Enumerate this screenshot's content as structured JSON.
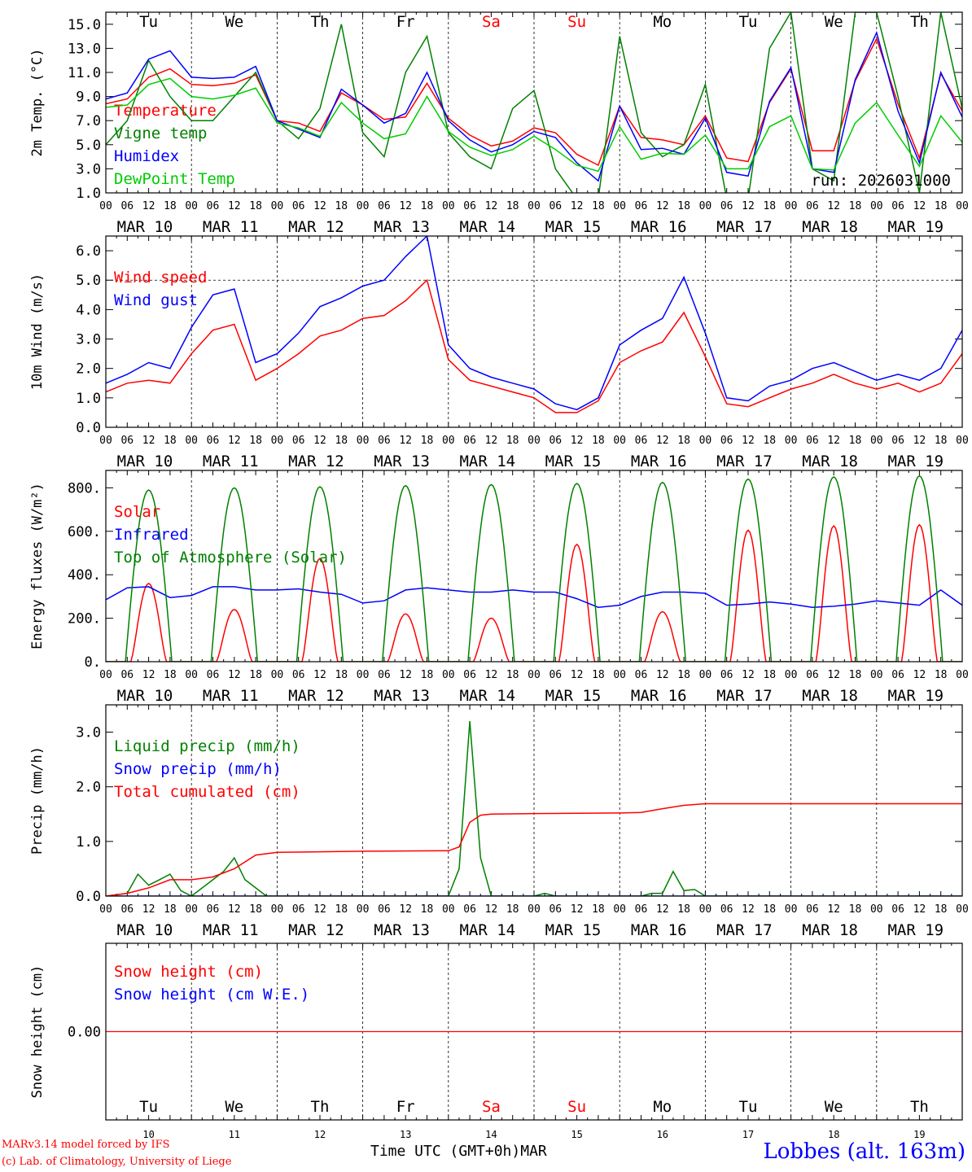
{
  "run_label": "run: 2026031000",
  "days_top": [
    "Tu",
    "We",
    "Th",
    "Fr",
    "Sa",
    "Su",
    "Mo",
    "Tu",
    "We",
    "Th"
  ],
  "day_colors": [
    "#000000",
    "#000000",
    "#000000",
    "#000000",
    "#ff0000",
    "#ff0000",
    "#000000",
    "#000000",
    "#000000",
    "#000000"
  ],
  "date_labels": [
    "MAR 10",
    "MAR 11",
    "MAR 12",
    "MAR 13",
    "MAR 14",
    "MAR 15",
    "MAR 16",
    "MAR 17",
    "MAR 18",
    "MAR 19"
  ],
  "hour_ticks": [
    "00",
    "06",
    "12",
    "18"
  ],
  "day_numbers": [
    "10",
    "11",
    "12",
    "13",
    "14",
    "15",
    "16",
    "17",
    "18",
    "19"
  ],
  "footer": {
    "model": "MARv3.14 model forced by IFS",
    "copyright": "(c) Lab. of Climatology, University of Liege",
    "time_label": "Time UTC (GMT+0h)",
    "month": "MAR",
    "station": "Lobbes (alt. 163m)"
  },
  "chart_data": [
    {
      "type": "line",
      "ylabel": "2m Temp. (°C)",
      "ylim": [
        1.0,
        16.0
      ],
      "yticks": [
        "1.0",
        "3.0",
        "5.0",
        "7.0",
        "9.0",
        "11.0",
        "13.0",
        "15.0"
      ],
      "ytick_values": [
        1,
        3,
        5,
        7,
        9,
        11,
        13,
        15
      ],
      "x_hours": [
        0,
        6,
        12,
        18,
        24,
        30,
        36,
        42,
        48,
        54,
        60,
        66,
        72,
        78,
        84,
        90,
        96,
        102,
        108,
        114,
        120,
        126,
        132,
        138,
        144,
        150,
        156,
        162,
        168,
        174,
        180,
        186,
        192,
        198,
        204,
        210,
        216,
        222,
        228,
        234,
        240
      ],
      "series": [
        {
          "name": "Temperature",
          "color": "#ff0000",
          "values": [
            8.4,
            8.8,
            10.6,
            11.3,
            10.0,
            9.9,
            10.1,
            10.8,
            7.0,
            6.8,
            6.1,
            9.3,
            8.3,
            7.1,
            7.3,
            10.1,
            7.2,
            5.8,
            4.9,
            5.3,
            6.4,
            6.0,
            4.2,
            3.3,
            8.2,
            5.6,
            5.4,
            5.0,
            7.4,
            3.9,
            3.6,
            8.5,
            11.3,
            4.5,
            4.5,
            10.3,
            13.8,
            8.4,
            3.9,
            10.9,
            7.8
          ]
        },
        {
          "name": "Vigne temp",
          "color": "#008000",
          "values": [
            5.0,
            7.0,
            12.0,
            9.0,
            7.0,
            7.0,
            9.0,
            11.0,
            7.0,
            5.5,
            8.0,
            15.0,
            6.0,
            4.0,
            11.0,
            14.0,
            6.0,
            4.0,
            3.0,
            8.0,
            9.5,
            3.0,
            0.5,
            0.5,
            14.0,
            6.0,
            4.0,
            5.0,
            10.0,
            0.5,
            0.5,
            13.0,
            16.0,
            3.0,
            2.0,
            16.0,
            16.0,
            9.0,
            1.0,
            16.0,
            8.0
          ]
        },
        {
          "name": "Humidex",
          "color": "#0000ff",
          "values": [
            8.8,
            9.3,
            12.1,
            12.8,
            10.6,
            10.5,
            10.6,
            11.5,
            7.0,
            6.3,
            5.6,
            9.6,
            8.3,
            6.8,
            7.6,
            11.0,
            7.0,
            5.4,
            4.4,
            5.0,
            6.1,
            5.6,
            3.5,
            2.0,
            8.2,
            4.6,
            4.7,
            4.2,
            7.2,
            2.7,
            2.4,
            8.6,
            11.4,
            3.0,
            2.7,
            10.4,
            14.3,
            7.8,
            3.5,
            11.0,
            7.3
          ]
        },
        {
          "name": "DewPoint Temp",
          "color": "#00cc00",
          "values": [
            8.1,
            8.3,
            10.0,
            10.5,
            9.0,
            8.8,
            9.1,
            9.7,
            6.8,
            6.4,
            5.7,
            8.5,
            6.8,
            5.5,
            5.9,
            9.0,
            6.1,
            4.8,
            4.1,
            4.6,
            5.7,
            4.6,
            3.3,
            2.8,
            6.5,
            3.8,
            4.3,
            4.2,
            5.8,
            3.0,
            3.0,
            6.5,
            7.4,
            3.0,
            2.9,
            6.8,
            8.5,
            5.8,
            3.2,
            7.4,
            5.2
          ]
        }
      ]
    },
    {
      "type": "line",
      "ylabel": "10m Wind (m/s)",
      "ylim": [
        0.0,
        6.5
      ],
      "yticks": [
        "0.0",
        "1.0",
        "2.0",
        "3.0",
        "4.0",
        "5.0",
        "6.0"
      ],
      "ytick_values": [
        0,
        1,
        2,
        3,
        4,
        5,
        6
      ],
      "reference_line": 5.0,
      "x_hours": [
        0,
        6,
        12,
        18,
        24,
        30,
        36,
        42,
        48,
        54,
        60,
        66,
        72,
        78,
        84,
        90,
        96,
        102,
        108,
        114,
        120,
        126,
        132,
        138,
        144,
        150,
        156,
        162,
        168,
        174,
        180,
        186,
        192,
        198,
        204,
        210,
        216,
        222,
        228,
        234,
        240
      ],
      "series": [
        {
          "name": "Wind speed",
          "color": "#ff0000",
          "values": [
            1.2,
            1.5,
            1.6,
            1.5,
            2.5,
            3.3,
            3.5,
            1.6,
            2.0,
            2.5,
            3.1,
            3.3,
            3.7,
            3.8,
            4.3,
            5.0,
            2.3,
            1.6,
            1.4,
            1.2,
            1.0,
            0.5,
            0.5,
            0.9,
            2.2,
            2.6,
            2.9,
            3.9,
            2.4,
            0.8,
            0.7,
            1.0,
            1.3,
            1.5,
            1.8,
            1.5,
            1.3,
            1.5,
            1.2,
            1.5,
            2.5
          ]
        },
        {
          "name": "Wind gust",
          "color": "#0000ff",
          "values": [
            1.5,
            1.8,
            2.2,
            2.0,
            3.4,
            4.5,
            4.7,
            2.2,
            2.5,
            3.2,
            4.1,
            4.4,
            4.8,
            5.0,
            5.8,
            6.5,
            2.8,
            2.0,
            1.7,
            1.5,
            1.3,
            0.8,
            0.6,
            1.0,
            2.8,
            3.3,
            3.7,
            5.1,
            3.2,
            1.0,
            0.9,
            1.4,
            1.6,
            2.0,
            2.2,
            1.9,
            1.6,
            1.8,
            1.6,
            2.0,
            3.3
          ]
        }
      ]
    },
    {
      "type": "line",
      "ylabel": "Energy fluxes (W/m²)",
      "ylim": [
        0,
        880
      ],
      "yticks": [
        "0.",
        "200.",
        "400.",
        "600.",
        "800."
      ],
      "ytick_values": [
        0,
        200,
        400,
        600,
        800
      ],
      "series": [
        {
          "name": "Solar",
          "color": "#ff0000",
          "daily_peak": [
            360,
            240,
            475,
            220,
            200,
            540,
            230,
            605,
            625,
            630
          ]
        },
        {
          "name": "Infrared",
          "color": "#0000ff",
          "x_hours": [
            0,
            6,
            12,
            18,
            24,
            30,
            36,
            42,
            48,
            54,
            60,
            66,
            72,
            78,
            84,
            90,
            96,
            102,
            108,
            114,
            120,
            126,
            132,
            138,
            144,
            150,
            156,
            162,
            168,
            174,
            180,
            186,
            192,
            198,
            204,
            210,
            216,
            222,
            228,
            234,
            240
          ],
          "values": [
            285,
            340,
            345,
            295,
            305,
            345,
            345,
            330,
            330,
            335,
            320,
            310,
            270,
            280,
            330,
            340,
            330,
            320,
            320,
            330,
            320,
            320,
            290,
            250,
            260,
            300,
            320,
            320,
            315,
            260,
            265,
            275,
            265,
            250,
            255,
            265,
            280,
            270,
            260,
            330,
            260
          ]
        },
        {
          "name": "Top of Atmosphere (Solar)",
          "color": "#008000",
          "daily_peak": [
            790,
            800,
            805,
            810,
            815,
            820,
            825,
            840,
            850,
            855
          ]
        }
      ]
    },
    {
      "type": "line",
      "ylabel": "Precip (mm/h)",
      "ylim": [
        0.0,
        3.5
      ],
      "yticks": [
        "0.0",
        "1.0",
        "2.0",
        "3.0"
      ],
      "ytick_values": [
        0,
        1,
        2,
        3
      ],
      "series": [
        {
          "name": "Liquid precip (mm/h)",
          "color": "#008000",
          "points": [
            [
              0,
              0
            ],
            [
              6,
              0.05
            ],
            [
              9,
              0.4
            ],
            [
              12,
              0.2
            ],
            [
              15,
              0.3
            ],
            [
              18,
              0.4
            ],
            [
              21,
              0.1
            ],
            [
              24,
              0
            ],
            [
              30,
              0.3
            ],
            [
              33,
              0.45
            ],
            [
              36,
              0.7
            ],
            [
              39,
              0.3
            ],
            [
              42,
              0.15
            ],
            [
              45,
              0
            ],
            [
              96,
              0
            ],
            [
              99,
              0.5
            ],
            [
              102,
              3.2
            ],
            [
              105,
              0.7
            ],
            [
              108,
              0
            ],
            [
              120,
              0
            ],
            [
              123,
              0.05
            ],
            [
              126,
              0
            ],
            [
              150,
              0
            ],
            [
              153,
              0.05
            ],
            [
              156,
              0.05
            ],
            [
              159,
              0.45
            ],
            [
              162,
              0.1
            ],
            [
              165,
              0.12
            ],
            [
              168,
              0
            ],
            [
              240,
              0
            ]
          ]
        },
        {
          "name": "Snow precip (mm/h)",
          "color": "#0000ff",
          "points": [
            [
              0,
              0
            ],
            [
              240,
              0
            ]
          ]
        },
        {
          "name": "Total cumulated (cm)",
          "color": "#ff0000",
          "points": [
            [
              0,
              0
            ],
            [
              6,
              0.05
            ],
            [
              12,
              0.15
            ],
            [
              18,
              0.3
            ],
            [
              24,
              0.3
            ],
            [
              30,
              0.35
            ],
            [
              36,
              0.5
            ],
            [
              42,
              0.75
            ],
            [
              48,
              0.8
            ],
            [
              72,
              0.82
            ],
            [
              96,
              0.83
            ],
            [
              99,
              0.9
            ],
            [
              102,
              1.35
            ],
            [
              105,
              1.48
            ],
            [
              108,
              1.5
            ],
            [
              120,
              1.51
            ],
            [
              144,
              1.52
            ],
            [
              150,
              1.53
            ],
            [
              156,
              1.6
            ],
            [
              162,
              1.66
            ],
            [
              168,
              1.69
            ],
            [
              240,
              1.69
            ]
          ]
        }
      ]
    },
    {
      "type": "line",
      "ylabel": "Snow height (cm)",
      "ylim": [
        -1,
        1
      ],
      "yticks": [
        "0.00"
      ],
      "ytick_values": [
        0
      ],
      "series": [
        {
          "name": "Snow height (cm)",
          "color": "#ff0000",
          "values": [
            0,
            0
          ]
        },
        {
          "name": "Snow height (cm W.E.)",
          "color": "#0000ff",
          "values": [
            0,
            0
          ]
        }
      ]
    }
  ]
}
